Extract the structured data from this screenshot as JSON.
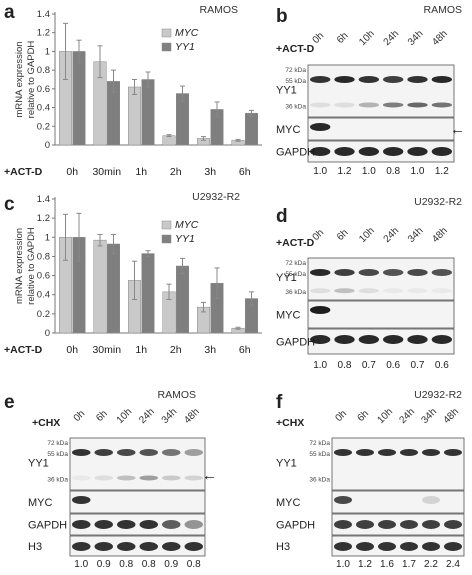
{
  "chart_data": [
    {
      "type": "bar",
      "panel": "a",
      "title": "RAMOS",
      "ylabel": "mRNA expression relative to GAPDH",
      "xlabel": "+ACT-D",
      "ylim": [
        0,
        1.4
      ],
      "yticks": [
        "0",
        "0.2",
        "0.4",
        "0.6",
        "0.8",
        "1",
        "1.2",
        "1.4"
      ],
      "categories": [
        "0h",
        "30min",
        "1h",
        "2h",
        "3h",
        "6h"
      ],
      "series": [
        {
          "name": "MYC",
          "values": [
            1.0,
            0.89,
            0.62,
            0.1,
            0.07,
            0.05
          ],
          "errors": [
            0.3,
            0.17,
            0.08,
            0.01,
            0.02,
            0.01
          ]
        },
        {
          "name": "YY1",
          "values": [
            1.0,
            0.68,
            0.7,
            0.55,
            0.38,
            0.34
          ],
          "errors": [
            0.12,
            0.12,
            0.08,
            0.08,
            0.08,
            0.03
          ]
        }
      ],
      "legend": "top-right"
    },
    {
      "type": "bar",
      "panel": "c",
      "title": "U2932-R2",
      "ylabel": "mRNA expression relative to GAPDH",
      "xlabel": "+ACT-D",
      "ylim": [
        0,
        1.4
      ],
      "yticks": [
        "0",
        "0.2",
        "0.4",
        "0.6",
        "0.8",
        "1",
        "1.2",
        "1.4"
      ],
      "categories": [
        "0h",
        "30min",
        "1h",
        "2h",
        "3h",
        "6h"
      ],
      "series": [
        {
          "name": "MYC",
          "values": [
            1.0,
            0.97,
            0.55,
            0.43,
            0.27,
            0.05
          ],
          "errors": [
            0.24,
            0.06,
            0.2,
            0.08,
            0.05,
            0.01
          ]
        },
        {
          "name": "YY1",
          "values": [
            1.0,
            0.93,
            0.83,
            0.7,
            0.52,
            0.36
          ],
          "errors": [
            0.25,
            0.1,
            0.03,
            0.08,
            0.16,
            0.07
          ]
        }
      ],
      "legend": "top-right"
    }
  ],
  "blots": [
    {
      "letter": "b",
      "title": "RAMOS",
      "treatment": "+ACT-D",
      "times": [
        "0h",
        "6h",
        "10h",
        "24h",
        "34h",
        "48h"
      ],
      "markers": [
        "72 kDa",
        "55 kDa",
        "36 kDa"
      ],
      "rows": [
        "YY1",
        "MYC",
        "GAPDH"
      ],
      "quant": [
        "1.0",
        "1.2",
        "1.0",
        "0.8",
        "1.0",
        "1.2"
      ],
      "arrow": "←"
    },
    {
      "letter": "d",
      "title": "U2932-R2",
      "treatment": "+ACT-D",
      "times": [
        "0h",
        "6h",
        "10h",
        "24h",
        "34h",
        "48h"
      ],
      "markers": [
        "72 kDa",
        "55 kDa",
        "36 kDa"
      ],
      "rows": [
        "YY1",
        "MYC",
        "GAPDH"
      ],
      "quant": [
        "1.0",
        "0.8",
        "0.7",
        "0.6",
        "0.7",
        "0.6"
      ]
    },
    {
      "letter": "e",
      "title": "RAMOS",
      "treatment": "+CHX",
      "times": [
        "0h",
        "6h",
        "10h",
        "24h",
        "34h",
        "48h"
      ],
      "markers": [
        "72 kDa",
        "55 kDa",
        "36 kDa"
      ],
      "rows": [
        "YY1",
        "MYC",
        "GAPDH",
        "H3"
      ],
      "quant": [
        "1.0",
        "0.9",
        "0.8",
        "0.8",
        "0.9",
        "0.8"
      ],
      "arrow": "←"
    },
    {
      "letter": "f",
      "title": "U2932-R2",
      "treatment": "+CHX",
      "times": [
        "0h",
        "6h",
        "10h",
        "24h",
        "34h",
        "48h"
      ],
      "markers": [
        "72 kDa",
        "55 kDa",
        "36 kDa"
      ],
      "rows": [
        "YY1",
        "MYC",
        "GAPDH",
        "H3"
      ],
      "quant": [
        "1.0",
        "1.2",
        "1.6",
        "1.7",
        "2.2",
        "2.4"
      ]
    }
  ],
  "colors": {
    "myc": "#c9c9c9",
    "yy1": "#7f7f7f"
  }
}
